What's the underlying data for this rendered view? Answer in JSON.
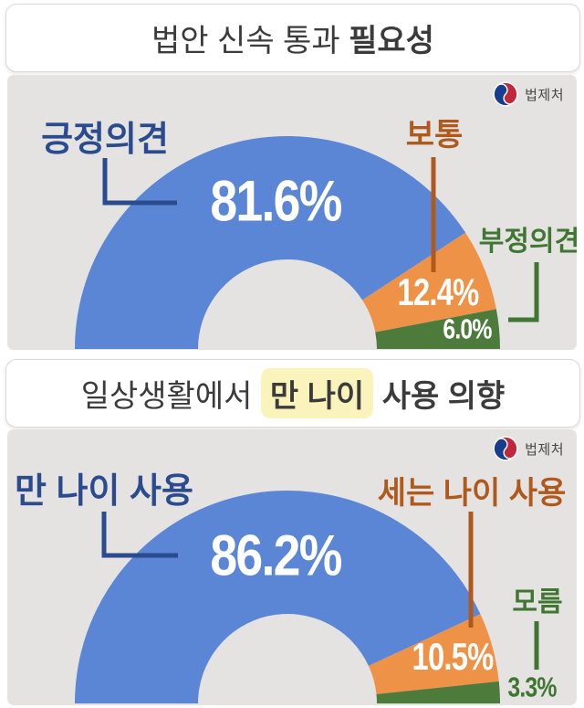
{
  "page": {
    "background": "#FFFFFF",
    "panel_background": "#E5E3E1",
    "title_text_color": "#3B3B3B",
    "highlight_color": "#FAF4BC"
  },
  "agency": {
    "name": "법제처",
    "logo": "korean-government-taegeuk"
  },
  "sections": [
    {
      "title": {
        "regular": "법안 신속 통과",
        "bold": "필요성"
      }
    },
    {
      "title": {
        "regular": "일상생활에서",
        "highlight": "만 나이",
        "bold": "사용 의향"
      }
    }
  ],
  "chart_data": [
    {
      "type": "pie",
      "variant": "semi-donut",
      "title": "법안 신속 통과 필요성",
      "unit": "percent",
      "total": 100,
      "legend_position": "callout-labels",
      "segments": [
        {
          "label": "긍정의견",
          "value": 81.6,
          "value_label": "81.6%",
          "color": "#5B86D5",
          "label_color": "#2A4B8D"
        },
        {
          "label": "보통",
          "value": 12.4,
          "value_label": "12.4%",
          "color": "#EE9247",
          "label_color": "#B0591D"
        },
        {
          "label": "부정의견",
          "value": 6.0,
          "value_label": "6.0%",
          "color": "#4C7B3B",
          "label_color": "#3E7632"
        }
      ]
    },
    {
      "type": "pie",
      "variant": "semi-donut",
      "title": "일상생활에서 만 나이 사용 의향",
      "unit": "percent",
      "total": 100,
      "legend_position": "callout-labels",
      "segments": [
        {
          "label": "만 나이 사용",
          "value": 86.2,
          "value_label": "86.2%",
          "color": "#5B86D5",
          "label_color": "#2A4B8D"
        },
        {
          "label": "세는 나이 사용",
          "value": 10.5,
          "value_label": "10.5%",
          "color": "#EE9247",
          "label_color": "#B0591D"
        },
        {
          "label": "모름",
          "value": 3.3,
          "value_label": "3.3%",
          "color": "#4C7B3B",
          "label_color": "#3E7632"
        }
      ]
    }
  ]
}
